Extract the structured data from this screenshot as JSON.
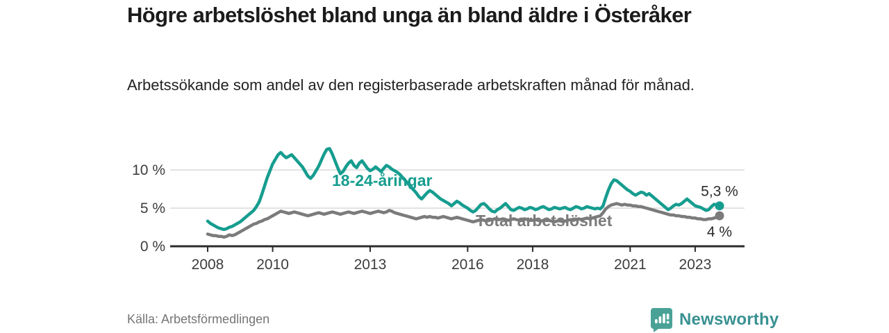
{
  "header": {
    "title": "Högre arbetslöshet bland unga än bland äldre i Österåker",
    "subtitle": "Arbetssökande som andel av den registerbaserade arbetskraften månad för månad."
  },
  "footer": {
    "source": "Källa: Arbetsförmedlingen",
    "logo_text": "Newsworthy",
    "logo_icon": "bar-chart-speech-bubble-icon"
  },
  "colors": {
    "youth_line": "#169d8f",
    "total_line": "#7b7b7b",
    "axis": "#2b2b2b",
    "grid": "#d8d8d8",
    "tick_text": "#3d3d3d",
    "end_label_text": "#2b2b2b",
    "logo_icon": "#4aa296",
    "logo_text": "#3a9192"
  },
  "chart_data": {
    "type": "line",
    "title": "",
    "xlabel": "",
    "ylabel": "",
    "x_unit": "month",
    "x_range": [
      "2008-01",
      "2023-10"
    ],
    "ylim": [
      0,
      13.5
    ],
    "grid": "horizontal",
    "legend_position": "inline-annotations",
    "x_ticks": [
      {
        "label": "2008",
        "year": 2008
      },
      {
        "label": "2010",
        "year": 2010
      },
      {
        "label": "2013",
        "year": 2013
      },
      {
        "label": "2016",
        "year": 2016
      },
      {
        "label": "2018",
        "year": 2018
      },
      {
        "label": "2021",
        "year": 2021
      },
      {
        "label": "2023",
        "year": 2023
      }
    ],
    "y_ticks": [
      {
        "label": "0 %",
        "value": 0
      },
      {
        "label": "5 %",
        "value": 5
      },
      {
        "label": "10 %",
        "value": 10
      }
    ],
    "series": [
      {
        "name": "18-24-åringar",
        "color": "#169d8f",
        "end_label": "5,3 %",
        "end_value": 5.3,
        "values": [
          3.3,
          3.0,
          2.8,
          2.6,
          2.4,
          2.3,
          2.2,
          2.3,
          2.5,
          2.6,
          2.8,
          3.0,
          3.2,
          3.5,
          3.8,
          4.1,
          4.4,
          4.7,
          5.2,
          5.8,
          6.8,
          7.9,
          9.0,
          9.9,
          10.8,
          11.4,
          12.0,
          12.3,
          11.9,
          11.6,
          11.8,
          12.0,
          11.6,
          11.2,
          10.8,
          10.4,
          9.8,
          9.2,
          8.9,
          9.3,
          9.9,
          10.5,
          11.3,
          12.1,
          12.7,
          12.8,
          12.1,
          11.2,
          10.3,
          9.5,
          9.8,
          10.4,
          10.9,
          11.2,
          10.6,
          10.3,
          10.9,
          11.2,
          10.7,
          10.2,
          9.9,
          10.1,
          10.4,
          10.1,
          9.8,
          10.2,
          10.6,
          10.4,
          10.1,
          9.9,
          9.7,
          9.4,
          9.0,
          8.6,
          8.2,
          7.8,
          7.4,
          7.0,
          6.5,
          6.2,
          6.6,
          7.0,
          7.3,
          7.1,
          6.8,
          6.5,
          6.2,
          6.0,
          5.8,
          5.6,
          5.3,
          5.6,
          5.9,
          5.7,
          5.4,
          5.2,
          5.0,
          4.7,
          4.5,
          4.7,
          5.1,
          5.5,
          5.6,
          5.3,
          4.9,
          4.6,
          4.5,
          4.8,
          5.0,
          5.3,
          5.6,
          5.2,
          4.8,
          4.7,
          4.9,
          5.1,
          5.0,
          4.8,
          4.9,
          5.1,
          5.0,
          4.8,
          4.9,
          5.1,
          5.2,
          5.0,
          4.8,
          4.9,
          5.1,
          5.0,
          4.9,
          5.0,
          5.1,
          4.9,
          4.8,
          5.0,
          5.2,
          5.1,
          4.9,
          5.0,
          5.2,
          5.1,
          5.0,
          4.9,
          5.0,
          4.9,
          5.3,
          6.4,
          7.4,
          8.2,
          8.7,
          8.6,
          8.3,
          8.0,
          7.7,
          7.4,
          7.2,
          6.9,
          6.7,
          6.9,
          7.1,
          7.0,
          6.7,
          6.9,
          6.6,
          6.3,
          6.0,
          5.7,
          5.4,
          5.1,
          4.8,
          5.0,
          5.3,
          5.5,
          5.4,
          5.6,
          5.9,
          6.2,
          5.9,
          5.6,
          5.3,
          5.2,
          5.1,
          4.9,
          4.7,
          4.8,
          5.2,
          5.5,
          5.4,
          5.3
        ]
      },
      {
        "name": "Total arbetslöshet",
        "color": "#7b7b7b",
        "end_label": "4 %",
        "end_value": 4.0,
        "values": [
          1.6,
          1.5,
          1.4,
          1.4,
          1.3,
          1.3,
          1.2,
          1.3,
          1.5,
          1.4,
          1.5,
          1.7,
          1.9,
          2.1,
          2.3,
          2.5,
          2.7,
          2.9,
          3.0,
          3.2,
          3.3,
          3.5,
          3.6,
          3.8,
          4.0,
          4.2,
          4.4,
          4.6,
          4.5,
          4.4,
          4.3,
          4.4,
          4.5,
          4.4,
          4.3,
          4.2,
          4.1,
          4.0,
          4.1,
          4.2,
          4.3,
          4.4,
          4.3,
          4.2,
          4.3,
          4.4,
          4.5,
          4.4,
          4.3,
          4.2,
          4.3,
          4.4,
          4.5,
          4.4,
          4.3,
          4.4,
          4.5,
          4.6,
          4.5,
          4.4,
          4.3,
          4.4,
          4.5,
          4.6,
          4.5,
          4.4,
          4.5,
          4.7,
          4.6,
          4.4,
          4.3,
          4.2,
          4.1,
          4.0,
          3.9,
          3.8,
          3.7,
          3.6,
          3.7,
          3.8,
          3.9,
          3.8,
          3.9,
          3.8,
          3.8,
          3.7,
          3.8,
          3.9,
          3.8,
          3.7,
          3.6,
          3.7,
          3.8,
          3.7,
          3.6,
          3.5,
          3.4,
          3.3,
          3.2,
          3.3,
          3.4,
          3.5,
          3.4,
          3.3,
          3.4,
          3.5,
          3.6,
          3.5,
          3.5,
          3.6,
          3.5,
          3.4,
          3.5,
          3.6,
          3.5,
          3.4,
          3.5,
          3.6,
          3.5,
          3.4,
          3.4,
          3.5,
          3.4,
          3.3,
          3.4,
          3.5,
          3.4,
          3.3,
          3.2,
          3.3,
          3.4,
          3.3,
          3.3,
          3.4,
          3.5,
          3.4,
          3.5,
          3.6,
          3.5,
          3.6,
          3.7,
          3.6,
          3.7,
          3.8,
          3.9,
          4.0,
          4.4,
          4.9,
          5.2,
          5.4,
          5.5,
          5.6,
          5.5,
          5.4,
          5.5,
          5.4,
          5.4,
          5.3,
          5.3,
          5.2,
          5.2,
          5.1,
          5.0,
          4.9,
          4.8,
          4.7,
          4.6,
          4.5,
          4.4,
          4.3,
          4.2,
          4.1,
          4.1,
          4.0,
          4.0,
          3.9,
          3.9,
          3.8,
          3.8,
          3.7,
          3.7,
          3.6,
          3.6,
          3.5,
          3.5,
          3.6,
          3.6,
          3.7,
          3.8,
          4.0
        ]
      }
    ]
  }
}
